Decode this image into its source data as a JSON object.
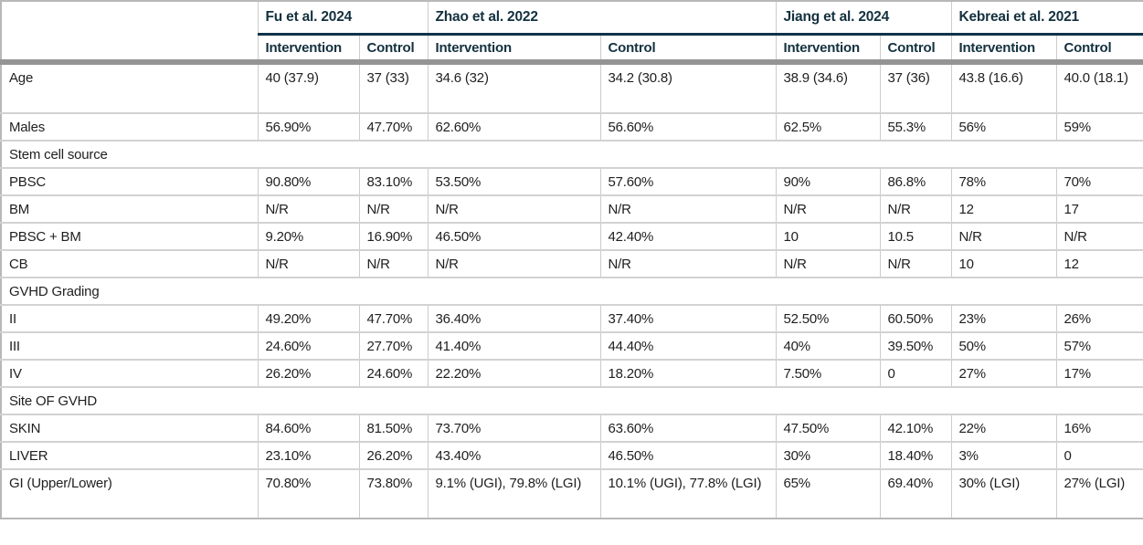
{
  "table": {
    "corner_label": "",
    "studies": [
      {
        "name": "Fu et al. 2024",
        "columns": [
          "Intervention",
          "Control"
        ]
      },
      {
        "name": "Zhao et al. 2022",
        "columns": [
          "Intervention",
          "Control"
        ]
      },
      {
        "name": "Jiang et al. 2024",
        "columns": [
          "Intervention",
          "Control"
        ]
      },
      {
        "name": "Kebreai et al. 2021",
        "columns": [
          "Intervention",
          "Control"
        ]
      }
    ],
    "rows": [
      {
        "type": "data",
        "label": "Age",
        "values": [
          "40 (37.9)",
          "37 (33)",
          "34.6 (32)",
          "34.2 (30.8)",
          "38.9 (34.6)",
          "37 (36)",
          "43.8 (16.6)",
          "40.0 (18.1)"
        ]
      },
      {
        "type": "data",
        "label": "Males",
        "values": [
          "56.90%",
          "47.70%",
          "62.60%",
          "56.60%",
          "62.5%",
          "55.3%",
          "56%",
          "59%"
        ]
      },
      {
        "type": "section",
        "label": "Stem cell source"
      },
      {
        "type": "data",
        "label": "PBSC",
        "values": [
          "90.80%",
          "83.10%",
          "53.50%",
          "57.60%",
          "90%",
          "86.8%",
          "78%",
          "70%"
        ]
      },
      {
        "type": "data",
        "label": "BM",
        "values": [
          "N/R",
          "N/R",
          "N/R",
          "N/R",
          "N/R",
          "N/R",
          "12",
          "17"
        ]
      },
      {
        "type": "data",
        "label": "PBSC + BM",
        "values": [
          "9.20%",
          "16.90%",
          "46.50%",
          "42.40%",
          "10",
          "10.5",
          "N/R",
          "N/R"
        ]
      },
      {
        "type": "data",
        "label": "CB",
        "values": [
          "N/R",
          "N/R",
          "N/R",
          "N/R",
          "N/R",
          "N/R",
          "10",
          "12"
        ]
      },
      {
        "type": "section",
        "label": "GVHD Grading"
      },
      {
        "type": "data",
        "label": "II",
        "values": [
          "49.20%",
          "47.70%",
          "36.40%",
          "37.40%",
          "52.50%",
          "60.50%",
          "23%",
          "26%"
        ]
      },
      {
        "type": "data",
        "label": "III",
        "values": [
          "24.60%",
          "27.70%",
          "41.40%",
          "44.40%",
          "40%",
          "39.50%",
          "50%",
          "57%"
        ]
      },
      {
        "type": "data",
        "label": "IV",
        "values": [
          "26.20%",
          "24.60%",
          "22.20%",
          "18.20%",
          "7.50%",
          "0",
          "27%",
          "17%"
        ]
      },
      {
        "type": "section",
        "label": "Site OF GVHD"
      },
      {
        "type": "data",
        "label": "SKIN",
        "values": [
          "84.60%",
          "81.50%",
          "73.70%",
          "63.60%",
          "47.50%",
          "42.10%",
          "22%",
          "16%"
        ]
      },
      {
        "type": "data",
        "label": "LIVER",
        "values": [
          "23.10%",
          "26.20%",
          "43.40%",
          "46.50%",
          "30%",
          "18.40%",
          "3%",
          "0"
        ]
      },
      {
        "type": "data",
        "label": "GI (Upper/Lower)",
        "values": [
          "70.80%",
          "73.80%",
          "9.1% (UGI), 79.8% (LGI)",
          "10.1% (UGI), 77.8% (LGI)",
          "65%",
          "69.40%",
          "30% (LGI)",
          "27% (LGI)"
        ]
      }
    ]
  },
  "colors": {
    "header_rule": "#0f3347",
    "thick_divider": "#949494",
    "cell_border": "#cccccc",
    "outer_border": "#b8b8b8",
    "text": "#1f1f1f",
    "header_text": "#14313f",
    "background": "#ffffff"
  }
}
